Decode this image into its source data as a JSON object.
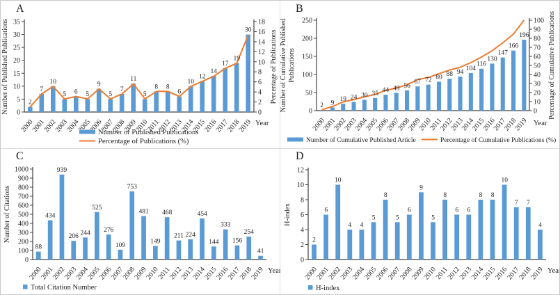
{
  "figure_title": "",
  "x_axis_label": "Year",
  "colors": {
    "bar": "#5B9BD5",
    "line": "#ED7D31",
    "axis": "#404040",
    "text": "#1f1f1f"
  },
  "chart_data": [
    {
      "panel_label": "A",
      "type": "bar-line",
      "categories": [
        "2000",
        "2001",
        "2002",
        "2003",
        "2004",
        "2005",
        "2006",
        "2007",
        "2008",
        "2009",
        "2010",
        "2011",
        "2012",
        "2013",
        "2014",
        "2015",
        "2016",
        "2017",
        "2018",
        "2019"
      ],
      "series": [
        {
          "name": "Number of Published Publications",
          "type": "bar",
          "color": "#5B9BD5",
          "values": [
            2,
            7,
            10,
            5,
            6,
            5,
            9,
            5,
            7,
            11,
            5,
            8,
            8,
            6,
            10,
            12,
            14,
            17,
            19,
            30
          ]
        },
        {
          "name": "Percentage of Publications (%)",
          "type": "line",
          "color": "#ED7D31",
          "values": [
            1.0,
            3.6,
            5.1,
            2.6,
            3.1,
            2.6,
            4.6,
            2.6,
            3.6,
            5.6,
            2.6,
            4.1,
            4.1,
            3.1,
            5.1,
            6.1,
            7.1,
            8.7,
            9.7,
            15.3
          ]
        }
      ],
      "left_axis": {
        "label": "Number of Published Publications",
        "min": 0,
        "max": 35,
        "step": 5
      },
      "right_axis": {
        "label": "Percentage of Publications",
        "min": 0,
        "max": 18,
        "step": 2
      },
      "x_axis_label": "Year",
      "legend": [
        {
          "swatch": "bar",
          "label": "Number of  Published Publications"
        },
        {
          "swatch": "line",
          "label": "Percentage of  Publications (%)"
        }
      ]
    },
    {
      "panel_label": "B",
      "type": "bar-line",
      "categories": [
        "2000",
        "2001",
        "2002",
        "2003",
        "2004",
        "2005",
        "2006",
        "2007",
        "2008",
        "2009",
        "2010",
        "2011",
        "2012",
        "2013",
        "2014",
        "2015",
        "2016",
        "2017",
        "2018",
        "2019"
      ],
      "series": [
        {
          "name": "Number of Cumulative Published Article",
          "type": "bar",
          "color": "#5B9BD5",
          "values": [
            2,
            9,
            19,
            24,
            30,
            35,
            44,
            49,
            56,
            67,
            72,
            80,
            88,
            94,
            104,
            116,
            130,
            147,
            166,
            196
          ]
        },
        {
          "name": "Percentage of Cumulative Publications (%)",
          "type": "line",
          "color": "#ED7D31",
          "values": [
            1.0,
            4.6,
            9.7,
            12.2,
            15.3,
            17.9,
            22.4,
            25.0,
            28.6,
            34.2,
            36.7,
            40.8,
            44.9,
            48.0,
            53.1,
            59.2,
            66.3,
            75.0,
            84.7,
            100.0
          ]
        }
      ],
      "left_axis": {
        "label": [
          "Number of  Cumulative Published",
          "Publications"
        ],
        "min": 0,
        "max": 250,
        "step": 50
      },
      "right_axis": {
        "label": "Percentage of Cumulative Publications",
        "min": 0,
        "max": 100,
        "step": 10
      },
      "x_axis_label": "Year",
      "legend": [
        {
          "swatch": "bar",
          "label": "Number of  Cumulative Published Article"
        },
        {
          "swatch": "line",
          "label": "Percentage of  Cumulative Publications (%)"
        }
      ]
    },
    {
      "panel_label": "C",
      "type": "bar",
      "categories": [
        "2000",
        "2001",
        "2002",
        "2003",
        "2004",
        "2005",
        "2006",
        "2007",
        "2008",
        "2009",
        "2010",
        "2011",
        "2012",
        "2013",
        "2014",
        "2015",
        "2016",
        "2017",
        "2018",
        "2019"
      ],
      "series": [
        {
          "name": "Total Citation Number",
          "type": "bar",
          "color": "#5B9BD5",
          "values": [
            88,
            434,
            939,
            206,
            244,
            525,
            276,
            109,
            753,
            481,
            149,
            468,
            211,
            224,
            454,
            144,
            333,
            156,
            254,
            41
          ]
        }
      ],
      "left_axis": {
        "label": "Number of Citations",
        "min": 0,
        "max": 1000,
        "step": 100
      },
      "x_axis_label": "Year",
      "legend": [
        {
          "swatch": "square",
          "label": "Total Citation Number"
        }
      ]
    },
    {
      "panel_label": "D",
      "type": "bar",
      "categories": [
        "2000",
        "2001",
        "2002",
        "2003",
        "2004",
        "2005",
        "2006",
        "2007",
        "2008",
        "2009",
        "2010",
        "2011",
        "2012",
        "2013",
        "2014",
        "2015",
        "2016",
        "2017",
        "2018",
        "2019"
      ],
      "series": [
        {
          "name": "H-index",
          "type": "bar",
          "color": "#5B9BD5",
          "values": [
            2,
            6,
            10,
            4,
            4,
            5,
            8,
            5,
            6,
            9,
            5,
            8,
            6,
            6,
            8,
            8,
            10,
            7,
            7,
            4
          ]
        }
      ],
      "left_axis": {
        "label": "H-index",
        "min": 0,
        "max": 12,
        "step": 2
      },
      "x_axis_label": "Year",
      "legend": [
        {
          "swatch": "square",
          "label": "H-index"
        }
      ]
    }
  ]
}
